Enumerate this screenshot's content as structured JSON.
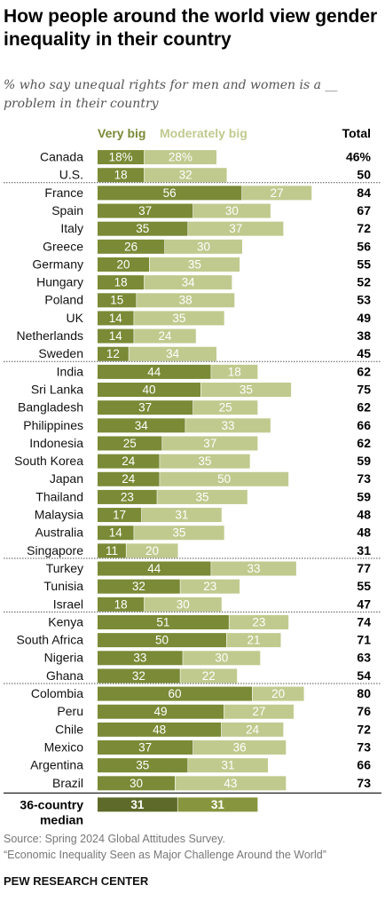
{
  "title": "How people around the world view gender inequality in their country",
  "subtitle": "% who say unequal rights for men and women is a __ problem in their country",
  "source": {
    "line1": "Source: Spring 2024 Global Attitudes Survey.",
    "line2": "“Economic Inequality Seen as Major Challenge Around the World”"
  },
  "brand": "PEW RESEARCH CENTER",
  "colors": {
    "very_big": "#7a8a36",
    "moderately_big": "#c0ca8e",
    "median_very_big": "#5e6a29",
    "median_moderately_big": "#87963e",
    "separator": "#555555"
  },
  "chart_data": {
    "type": "bar",
    "orientation": "horizontal",
    "stacked": true,
    "legend_position": "top",
    "headers": {
      "very_big": "Very big",
      "moderately_big": "Moderately big",
      "total": "Total"
    },
    "series": [
      {
        "name": "Very big",
        "key": "very_big"
      },
      {
        "name": "Moderately big",
        "key": "moderately_big"
      }
    ],
    "groups": [
      [
        {
          "label": "Canada",
          "very_big": 18,
          "moderately_big": 28,
          "total": 46,
          "very_big_label": "18%",
          "moderately_big_label": "28%",
          "total_label": "46%"
        },
        {
          "label": "U.S.",
          "very_big": 18,
          "moderately_big": 32,
          "total": 50
        }
      ],
      [
        {
          "label": "France",
          "very_big": 56,
          "moderately_big": 27,
          "total": 84
        },
        {
          "label": "Spain",
          "very_big": 37,
          "moderately_big": 30,
          "total": 67
        },
        {
          "label": "Italy",
          "very_big": 35,
          "moderately_big": 37,
          "total": 72
        },
        {
          "label": "Greece",
          "very_big": 26,
          "moderately_big": 30,
          "total": 56
        },
        {
          "label": "Germany",
          "very_big": 20,
          "moderately_big": 35,
          "total": 55
        },
        {
          "label": "Hungary",
          "very_big": 18,
          "moderately_big": 34,
          "total": 52
        },
        {
          "label": "Poland",
          "very_big": 15,
          "moderately_big": 38,
          "total": 53
        },
        {
          "label": "UK",
          "very_big": 14,
          "moderately_big": 35,
          "total": 49
        },
        {
          "label": "Netherlands",
          "very_big": 14,
          "moderately_big": 24,
          "total": 38
        },
        {
          "label": "Sweden",
          "very_big": 12,
          "moderately_big": 34,
          "total": 45
        }
      ],
      [
        {
          "label": "India",
          "very_big": 44,
          "moderately_big": 18,
          "total": 62
        },
        {
          "label": "Sri Lanka",
          "very_big": 40,
          "moderately_big": 35,
          "total": 75
        },
        {
          "label": "Bangladesh",
          "very_big": 37,
          "moderately_big": 25,
          "total": 62
        },
        {
          "label": "Philippines",
          "very_big": 34,
          "moderately_big": 33,
          "total": 66
        },
        {
          "label": "Indonesia",
          "very_big": 25,
          "moderately_big": 37,
          "total": 62
        },
        {
          "label": "South Korea",
          "very_big": 24,
          "moderately_big": 35,
          "total": 59
        },
        {
          "label": "Japan",
          "very_big": 24,
          "moderately_big": 50,
          "total": 73
        },
        {
          "label": "Thailand",
          "very_big": 23,
          "moderately_big": 35,
          "total": 59
        },
        {
          "label": "Malaysia",
          "very_big": 17,
          "moderately_big": 31,
          "total": 48
        },
        {
          "label": "Australia",
          "very_big": 14,
          "moderately_big": 35,
          "total": 48
        },
        {
          "label": "Singapore",
          "very_big": 11,
          "moderately_big": 20,
          "total": 31
        }
      ],
      [
        {
          "label": "Turkey",
          "very_big": 44,
          "moderately_big": 33,
          "total": 77
        },
        {
          "label": "Tunisia",
          "very_big": 32,
          "moderately_big": 23,
          "total": 55
        },
        {
          "label": "Israel",
          "very_big": 18,
          "moderately_big": 30,
          "total": 47
        }
      ],
      [
        {
          "label": "Kenya",
          "very_big": 51,
          "moderately_big": 23,
          "total": 74
        },
        {
          "label": "South Africa",
          "very_big": 50,
          "moderately_big": 21,
          "total": 71
        },
        {
          "label": "Nigeria",
          "very_big": 33,
          "moderately_big": 30,
          "total": 63
        },
        {
          "label": "Ghana",
          "very_big": 32,
          "moderately_big": 22,
          "total": 54
        }
      ],
      [
        {
          "label": "Colombia",
          "very_big": 60,
          "moderately_big": 20,
          "total": 80
        },
        {
          "label": "Peru",
          "very_big": 49,
          "moderately_big": 27,
          "total": 76
        },
        {
          "label": "Chile",
          "very_big": 48,
          "moderately_big": 24,
          "total": 72
        },
        {
          "label": "Mexico",
          "very_big": 37,
          "moderately_big": 36,
          "total": 73
        },
        {
          "label": "Argentina",
          "very_big": 35,
          "moderately_big": 31,
          "total": 66
        },
        {
          "label": "Brazil",
          "very_big": 30,
          "moderately_big": 43,
          "total": 73
        }
      ]
    ],
    "median": {
      "label_line1": "36-country",
      "label_line2": "median",
      "very_big": 31,
      "moderately_big": 31
    }
  }
}
